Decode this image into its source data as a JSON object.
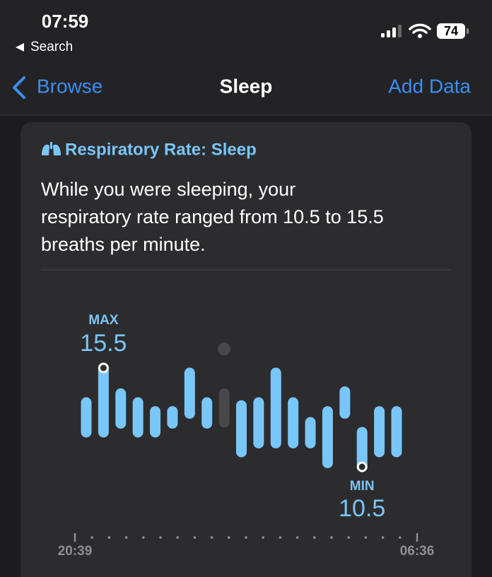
{
  "status_bar": {
    "time": "07:59",
    "back_label": "Search",
    "battery": "74"
  },
  "nav": {
    "back": "Browse",
    "title": "Sleep",
    "action": "Add Data"
  },
  "card": {
    "title": "Respiratory Rate: Sleep",
    "summary_lines": [
      "While you were sleeping, your",
      "respiratory rate ranged from 10.5 to 15.5",
      "breaths per minute."
    ]
  },
  "chart_data": {
    "type": "range-bar",
    "max_label": "MAX",
    "max_value": 15.5,
    "min_label": "MIN",
    "min_value": 10.5,
    "x_start": "20:39",
    "x_end": "06:36",
    "highs": [
      13.75,
      15.5,
      14.2,
      13.75,
      13.3,
      13.3,
      15.25,
      13.75,
      14.2,
      13.6,
      13.75,
      15.25,
      13.75,
      12.75,
      13.3,
      14.3,
      12.25,
      13.3,
      13.3
    ],
    "lows": [
      12.25,
      12.25,
      12.7,
      12.25,
      12.25,
      12.7,
      13.2,
      12.7,
      12.75,
      11.25,
      11.7,
      11.7,
      11.7,
      11.7,
      10.7,
      13.2,
      10.5,
      11.25,
      11.25
    ],
    "colors": [
      "#79c6f9",
      "#79c6f9",
      "#79c6f9",
      "#79c6f9",
      "#79c6f9",
      "#79c6f9",
      "#79c6f9",
      "#79c6f9",
      "#48484a",
      "#79c6f9",
      "#79c6f9",
      "#79c6f9",
      "#79c6f9",
      "#79c6f9",
      "#79c6f9",
      "#79c6f9",
      "#79c6f9",
      "#79c6f9",
      "#79c6f9"
    ]
  }
}
